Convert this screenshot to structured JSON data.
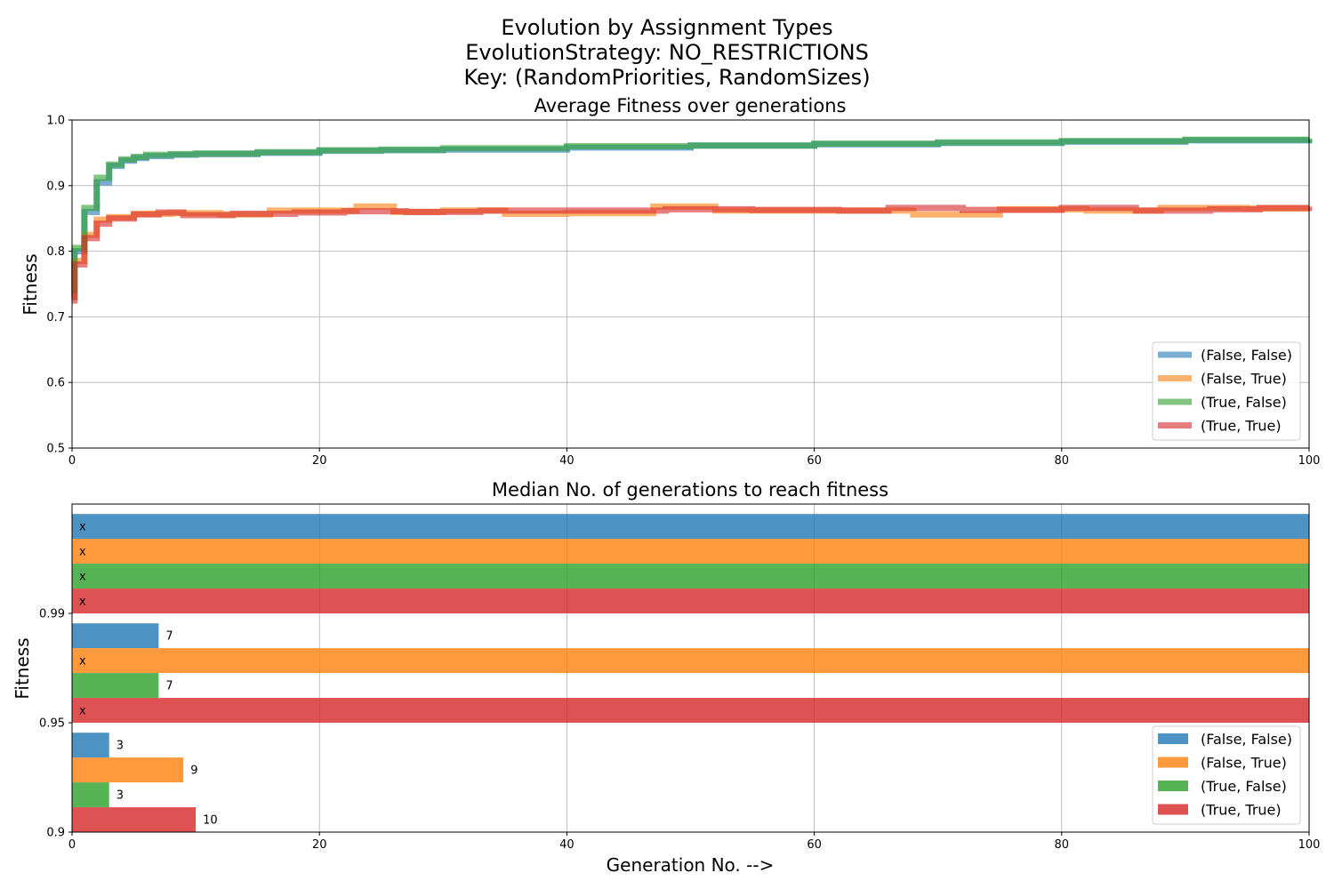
{
  "figure": {
    "suptitle_lines": [
      "Evolution by Assignment Types",
      "EvolutionStrategy: NO_RESTRICTIONS",
      "Key: (RandomPriorities, RandomSizes)"
    ]
  },
  "chart_data": [
    {
      "type": "line",
      "title": "Average Fitness over generations",
      "xlabel": "",
      "ylabel": "Fitness",
      "xlim": [
        0,
        100
      ],
      "ylim": [
        0.5,
        1.0
      ],
      "xticks": [
        "0",
        "20",
        "40",
        "60",
        "80",
        "100"
      ],
      "yticks": [
        "0.5",
        "0.6",
        "0.7",
        "0.8",
        "0.9",
        "1.0"
      ],
      "grid": true,
      "legend_position": "lower-right",
      "step": true,
      "series": [
        {
          "name": "(False, False)",
          "color": "#1f77b4",
          "points": [
            [
              0,
              0.73
            ],
            [
              0.2,
              0.8
            ],
            [
              1,
              0.86
            ],
            [
              2,
              0.905
            ],
            [
              3,
              0.93
            ],
            [
              4,
              0.938
            ],
            [
              5,
              0.942
            ],
            [
              6,
              0.945
            ],
            [
              8,
              0.947
            ],
            [
              10,
              0.948
            ],
            [
              15,
              0.95
            ],
            [
              20,
              0.953
            ],
            [
              25,
              0.954
            ],
            [
              30,
              0.955
            ],
            [
              40,
              0.958
            ],
            [
              50,
              0.961
            ],
            [
              60,
              0.963
            ],
            [
              70,
              0.965
            ],
            [
              80,
              0.967
            ],
            [
              90,
              0.969
            ],
            [
              100,
              0.97
            ]
          ]
        },
        {
          "name": "(False, True)",
          "color": "#ff7f0e",
          "points": [
            [
              0,
              0.73
            ],
            [
              0.2,
              0.785
            ],
            [
              1,
              0.825
            ],
            [
              2,
              0.848
            ],
            [
              3,
              0.852
            ],
            [
              5,
              0.857
            ],
            [
              8,
              0.858
            ],
            [
              12,
              0.856
            ],
            [
              16,
              0.862
            ],
            [
              20,
              0.862
            ],
            [
              23,
              0.868
            ],
            [
              26,
              0.86
            ],
            [
              30,
              0.862
            ],
            [
              35,
              0.857
            ],
            [
              40,
              0.858
            ],
            [
              47,
              0.868
            ],
            [
              52,
              0.862
            ],
            [
              60,
              0.862
            ],
            [
              68,
              0.856
            ],
            [
              75,
              0.864
            ],
            [
              82,
              0.862
            ],
            [
              88,
              0.866
            ],
            [
              95,
              0.865
            ],
            [
              100,
              0.865
            ]
          ]
        },
        {
          "name": "(True, False)",
          "color": "#2ca02c",
          "points": [
            [
              0,
              0.74
            ],
            [
              0.2,
              0.805
            ],
            [
              1,
              0.866
            ],
            [
              2,
              0.912
            ],
            [
              3,
              0.932
            ],
            [
              4,
              0.94
            ],
            [
              5,
              0.944
            ],
            [
              6,
              0.947
            ],
            [
              8,
              0.948
            ],
            [
              10,
              0.949
            ],
            [
              15,
              0.951
            ],
            [
              20,
              0.954
            ],
            [
              25,
              0.955
            ],
            [
              30,
              0.957
            ],
            [
              40,
              0.96
            ],
            [
              50,
              0.961
            ],
            [
              60,
              0.964
            ],
            [
              70,
              0.966
            ],
            [
              80,
              0.968
            ],
            [
              90,
              0.97
            ],
            [
              100,
              0.972
            ]
          ]
        },
        {
          "name": "(True, True)",
          "color": "#d62728",
          "points": [
            [
              0,
              0.725
            ],
            [
              0.2,
              0.78
            ],
            [
              1,
              0.82
            ],
            [
              2,
              0.842
            ],
            [
              3,
              0.85
            ],
            [
              5,
              0.856
            ],
            [
              7,
              0.859
            ],
            [
              9,
              0.855
            ],
            [
              13,
              0.857
            ],
            [
              18,
              0.859
            ],
            [
              22,
              0.861
            ],
            [
              27,
              0.86
            ],
            [
              33,
              0.862
            ],
            [
              37,
              0.862
            ],
            [
              42,
              0.862
            ],
            [
              48,
              0.864
            ],
            [
              55,
              0.863
            ],
            [
              62,
              0.862
            ],
            [
              66,
              0.866
            ],
            [
              72,
              0.863
            ],
            [
              80,
              0.866
            ],
            [
              86,
              0.862
            ],
            [
              92,
              0.864
            ],
            [
              96,
              0.866
            ],
            [
              100,
              0.868
            ]
          ]
        }
      ]
    },
    {
      "type": "bar",
      "orientation": "horizontal",
      "title": "Median No. of generations to reach fitness",
      "xlabel": "Generation No. -->",
      "ylabel": "Fitness",
      "xlim": [
        0,
        100
      ],
      "xticks": [
        "0",
        "20",
        "40",
        "60",
        "80",
        "100"
      ],
      "categories": [
        "0.9",
        "0.95",
        "0.99"
      ],
      "grid": true,
      "legend_position": "lower-right",
      "not_reached_label": "x",
      "series": [
        {
          "name": "(False, False)",
          "color": "#1f77b4",
          "values": [
            3,
            7,
            null
          ]
        },
        {
          "name": "(False, True)",
          "color": "#ff7f0e",
          "values": [
            9,
            null,
            null
          ]
        },
        {
          "name": "(True, False)",
          "color": "#2ca02c",
          "values": [
            3,
            7,
            null
          ]
        },
        {
          "name": "(True, True)",
          "color": "#d62728",
          "values": [
            10,
            null,
            null
          ]
        }
      ]
    }
  ]
}
